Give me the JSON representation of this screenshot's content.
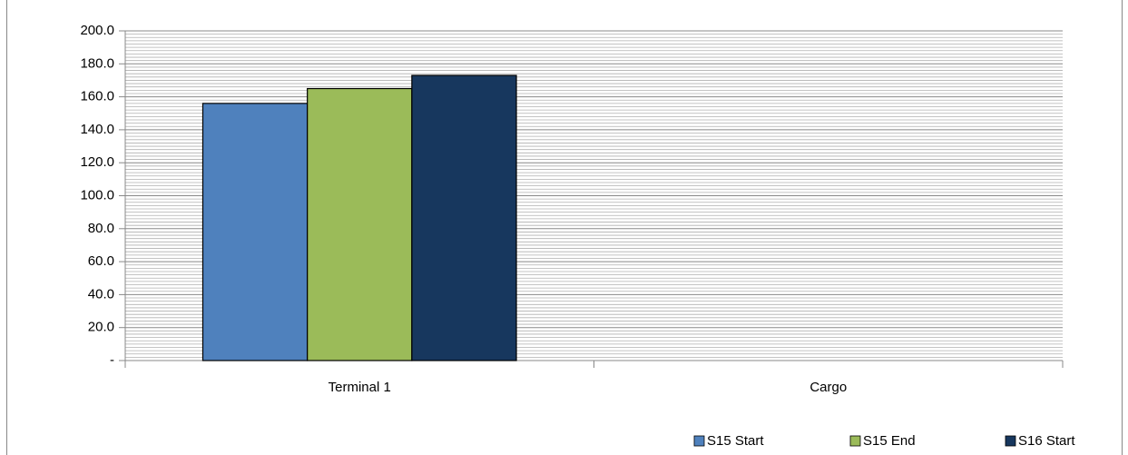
{
  "chart_data": {
    "type": "bar",
    "categories": [
      "Terminal 1",
      "Cargo"
    ],
    "series": [
      {
        "name": "S15 Start",
        "color": "#4f81bd",
        "values": [
          156,
          null
        ]
      },
      {
        "name": "S15 End",
        "color": "#9bbb59",
        "values": [
          165,
          null
        ]
      },
      {
        "name": "S16 Start",
        "color": "#17375e",
        "values": [
          173,
          null
        ]
      }
    ],
    "ylim": [
      0,
      200
    ],
    "yticks": [
      {
        "value": 0,
        "label": "-"
      },
      {
        "value": 20,
        "label": "20.0"
      },
      {
        "value": 40,
        "label": "40.0"
      },
      {
        "value": 60,
        "label": "60.0"
      },
      {
        "value": 80,
        "label": "80.0"
      },
      {
        "value": 100,
        "label": "100.0"
      },
      {
        "value": 120,
        "label": "120.0"
      },
      {
        "value": 140,
        "label": "140.0"
      },
      {
        "value": 160,
        "label": "160.0"
      },
      {
        "value": 180,
        "label": "180.0"
      },
      {
        "value": 200,
        "label": "200.0"
      }
    ],
    "grid": true,
    "minor_grid": true,
    "legend": "bottom-right"
  }
}
